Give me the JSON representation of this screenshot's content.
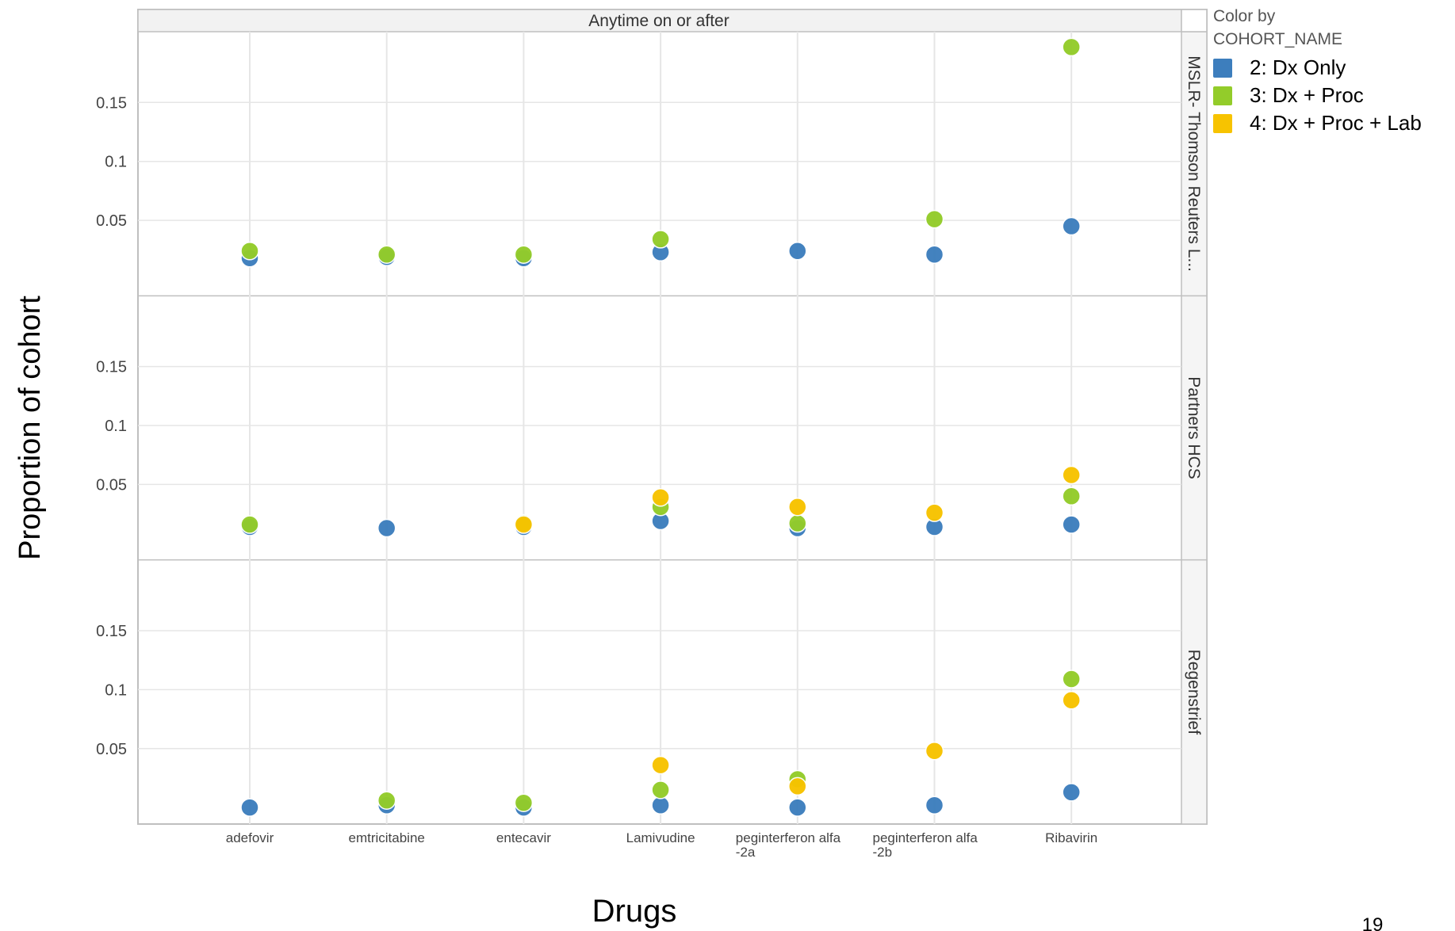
{
  "page_number": "19",
  "chart_data": {
    "type": "scatter",
    "column_header": "Anytime on or after",
    "xlabel": "Drugs",
    "ylabel": "Proportion of cohort",
    "categories": [
      "adefovir",
      "emtricitabine",
      "entecavir",
      "Lamivudine",
      "peginterferon alfa\n-2a",
      "peginterferon alfa\n-2b",
      "Ribavirin"
    ],
    "y_ticks": [
      0.05,
      0.1,
      0.15
    ],
    "y_tick_labels": [
      "0.05",
      "0.1",
      "0.15"
    ],
    "grid": true,
    "legend": {
      "title_line1": "Color by",
      "title_line2": "COHORT_NAME",
      "placement": "top-right",
      "items": [
        {
          "name": "2: Dx Only",
          "color": "#3d7ebd"
        },
        {
          "name": "3: Dx + Proc",
          "color": "#93cc2a"
        },
        {
          "name": "4: Dx + Proc + Lab",
          "color": "#f7c300"
        }
      ]
    },
    "panels": [
      {
        "label": "MSLR- Thomson Reuters L...",
        "ylim": [
          -0.014,
          0.21
        ],
        "series": [
          {
            "name": "2: Dx Only",
            "values": [
              0.018,
              0.019,
              0.018,
              0.023,
              0.024,
              0.021,
              0.045
            ]
          },
          {
            "name": "3: Dx + Proc",
            "values": [
              0.024,
              0.021,
              0.021,
              0.034,
              null,
              0.051,
              0.197
            ]
          },
          {
            "name": "4: Dx + Proc + Lab",
            "values": [
              null,
              null,
              null,
              null,
              null,
              null,
              null
            ]
          }
        ]
      },
      {
        "label": "Partners HCS",
        "ylim": [
          -0.014,
          0.21
        ],
        "series": [
          {
            "name": "2: Dx Only",
            "values": [
              0.014,
              0.013,
              0.014,
              0.019,
              0.013,
              0.014,
              0.016
            ]
          },
          {
            "name": "3: Dx + Proc",
            "values": [
              0.016,
              null,
              0.017,
              0.031,
              0.017,
              null,
              0.04
            ]
          },
          {
            "name": "4: Dx + Proc + Lab",
            "values": [
              null,
              null,
              0.016,
              0.039,
              0.031,
              0.026,
              0.058
            ]
          }
        ]
      },
      {
        "label": "Regenstrief",
        "ylim": [
          -0.014,
          0.21
        ],
        "series": [
          {
            "name": "2: Dx Only",
            "values": [
              0.0,
              0.002,
              0.0,
              0.002,
              0.0,
              0.002,
              0.013
            ]
          },
          {
            "name": "3: Dx + Proc",
            "values": [
              null,
              0.006,
              0.004,
              0.015,
              0.024,
              null,
              0.109
            ]
          },
          {
            "name": "4: Dx + Proc + Lab",
            "values": [
              null,
              null,
              null,
              0.036,
              0.018,
              0.048,
              0.091
            ]
          }
        ]
      }
    ]
  }
}
